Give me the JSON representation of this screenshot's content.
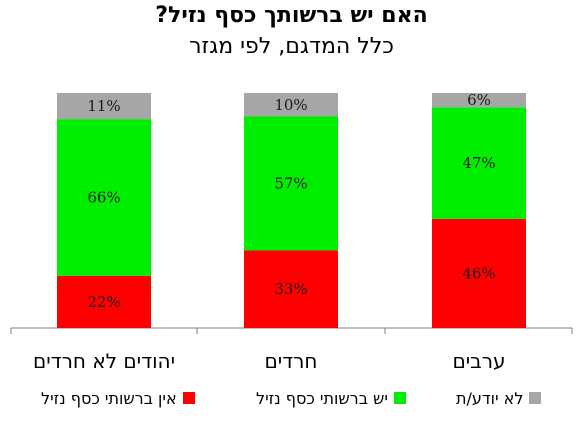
{
  "chart_data": {
    "type": "bar",
    "stacked": true,
    "title": "האם יש ברשותך כסף נזיל?",
    "subtitle": "כלל המדגם, לפי מגזר",
    "categories": [
      "יהודים לא חרדים",
      "חרדים",
      "ערבים"
    ],
    "series": [
      {
        "name": "אין ברשותי כסף נזיל",
        "values": [
          22,
          33,
          46
        ],
        "labels": [
          "22%",
          "33%",
          "46%"
        ],
        "color": "#ff0000"
      },
      {
        "name": "יש ברשותי כסף נזיל",
        "values": [
          66,
          57,
          47
        ],
        "labels": [
          "66%",
          "57%",
          "47%"
        ],
        "color": "#00ee00"
      },
      {
        "name": "לא יודע/ת",
        "values": [
          11,
          10,
          6
        ],
        "labels": [
          "11%",
          "10%",
          "6%"
        ],
        "color": "#a6a6a6"
      }
    ],
    "ylim": [
      0,
      100
    ],
    "grid": false,
    "legend_position": "bottom"
  }
}
